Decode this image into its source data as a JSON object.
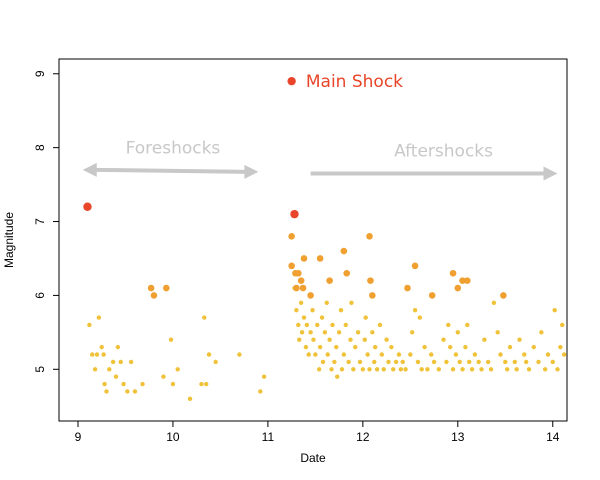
{
  "chart_data": {
    "type": "scatter",
    "xlabel": "Date",
    "ylabel": "Magnitude",
    "xlim": [
      8.8,
      14.15
    ],
    "ylim": [
      4.3,
      9.2
    ],
    "x_ticks": [
      9,
      10,
      11,
      12,
      13,
      14
    ],
    "y_ticks": [
      5,
      6,
      7,
      8,
      9
    ],
    "grid": false,
    "annotations": [
      {
        "text": "Main Shock",
        "x": 11.4,
        "y": 8.9,
        "color": "#e8452a"
      },
      {
        "text": "Foreshocks",
        "x": 10.0,
        "y": 7.92,
        "color": "#c8c8c8",
        "arrow_x": [
          9.05,
          10.9
        ],
        "arrow_y": 7.7
      },
      {
        "text": "Aftershocks",
        "x": 12.85,
        "y": 7.88,
        "color": "#c8c8c8",
        "arrow_x": [
          11.45,
          14.05
        ],
        "arrow_y": 7.65
      }
    ],
    "colors": {
      "red": "#e8452a",
      "orange": "#f0a030",
      "yellow": "#efc23a",
      "arrow": "#c8c8c8"
    },
    "series": [
      {
        "color": "red",
        "points": [
          [
            11.25,
            8.9
          ],
          [
            9.1,
            7.2
          ],
          [
            11.28,
            7.1
          ]
        ]
      },
      {
        "color": "orange",
        "points": [
          [
            9.77,
            6.1
          ],
          [
            9.8,
            6.0
          ],
          [
            9.93,
            6.1
          ],
          [
            11.25,
            6.8
          ],
          [
            11.25,
            6.4
          ],
          [
            11.29,
            6.3
          ],
          [
            11.32,
            6.3
          ],
          [
            11.3,
            6.1
          ],
          [
            11.35,
            6.2
          ],
          [
            11.37,
            6.1
          ],
          [
            11.38,
            6.5
          ],
          [
            11.45,
            6.0
          ],
          [
            11.55,
            6.5
          ],
          [
            11.65,
            6.2
          ],
          [
            11.8,
            6.6
          ],
          [
            11.83,
            6.3
          ],
          [
            12.07,
            6.8
          ],
          [
            12.08,
            6.2
          ],
          [
            12.1,
            6.0
          ],
          [
            12.47,
            6.1
          ],
          [
            12.55,
            6.4
          ],
          [
            12.73,
            6.0
          ],
          [
            12.95,
            6.3
          ],
          [
            13.0,
            6.1
          ],
          [
            13.05,
            6.2
          ],
          [
            13.1,
            6.2
          ],
          [
            13.48,
            6.0
          ]
        ]
      },
      {
        "color": "yellow",
        "points": [
          [
            9.12,
            5.6
          ],
          [
            9.15,
            5.2
          ],
          [
            9.18,
            5.0
          ],
          [
            9.2,
            5.2
          ],
          [
            9.22,
            5.7
          ],
          [
            9.25,
            5.3
          ],
          [
            9.27,
            5.2
          ],
          [
            9.28,
            4.8
          ],
          [
            9.3,
            4.7
          ],
          [
            9.33,
            5.0
          ],
          [
            9.37,
            5.1
          ],
          [
            9.4,
            4.9
          ],
          [
            9.42,
            5.3
          ],
          [
            9.45,
            5.1
          ],
          [
            9.48,
            4.8
          ],
          [
            9.52,
            4.7
          ],
          [
            9.56,
            5.1
          ],
          [
            9.6,
            4.7
          ],
          [
            9.68,
            4.8
          ],
          [
            9.9,
            4.9
          ],
          [
            9.98,
            5.4
          ],
          [
            10.0,
            4.8
          ],
          [
            10.05,
            5.0
          ],
          [
            10.18,
            4.6
          ],
          [
            10.3,
            4.8
          ],
          [
            10.33,
            5.7
          ],
          [
            10.35,
            4.8
          ],
          [
            10.38,
            5.2
          ],
          [
            10.45,
            5.1
          ],
          [
            10.7,
            5.2
          ],
          [
            10.92,
            4.7
          ],
          [
            10.96,
            4.9
          ],
          [
            11.28,
            6.1
          ],
          [
            11.3,
            5.8
          ],
          [
            11.32,
            5.6
          ],
          [
            11.33,
            5.4
          ],
          [
            11.35,
            5.9
          ],
          [
            11.36,
            5.5
          ],
          [
            11.38,
            5.7
          ],
          [
            11.4,
            5.3
          ],
          [
            11.41,
            5.6
          ],
          [
            11.43,
            5.2
          ],
          [
            11.45,
            5.5
          ],
          [
            11.47,
            5.8
          ],
          [
            11.48,
            5.4
          ],
          [
            11.5,
            5.2
          ],
          [
            11.52,
            5.6
          ],
          [
            11.54,
            5.0
          ],
          [
            11.55,
            5.3
          ],
          [
            11.57,
            5.7
          ],
          [
            11.58,
            5.1
          ],
          [
            11.6,
            5.5
          ],
          [
            11.62,
            5.9
          ],
          [
            11.63,
            5.2
          ],
          [
            11.65,
            5.4
          ],
          [
            11.67,
            5.0
          ],
          [
            11.68,
            5.6
          ],
          [
            11.7,
            5.1
          ],
          [
            11.72,
            5.3
          ],
          [
            11.73,
            4.9
          ],
          [
            11.75,
            5.5
          ],
          [
            11.77,
            5.8
          ],
          [
            11.78,
            5.0
          ],
          [
            11.8,
            5.2
          ],
          [
            11.82,
            5.6
          ],
          [
            11.85,
            5.1
          ],
          [
            11.87,
            5.4
          ],
          [
            11.88,
            5.9
          ],
          [
            11.9,
            5.0
          ],
          [
            11.92,
            5.3
          ],
          [
            11.95,
            5.5
          ],
          [
            11.97,
            5.1
          ],
          [
            12.0,
            5.0
          ],
          [
            12.02,
            5.4
          ],
          [
            12.03,
            5.7
          ],
          [
            12.05,
            5.2
          ],
          [
            12.07,
            5.0
          ],
          [
            12.1,
            5.5
          ],
          [
            12.12,
            5.1
          ],
          [
            12.13,
            5.3
          ],
          [
            12.15,
            5.0
          ],
          [
            12.18,
            5.6
          ],
          [
            12.2,
            5.2
          ],
          [
            12.22,
            5.0
          ],
          [
            12.25,
            5.4
          ],
          [
            12.27,
            5.1
          ],
          [
            12.3,
            5.3
          ],
          [
            12.32,
            5.0
          ],
          [
            12.35,
            5.1
          ],
          [
            12.38,
            5.2
          ],
          [
            12.4,
            5.0
          ],
          [
            12.42,
            5.1
          ],
          [
            12.45,
            5.0
          ],
          [
            12.5,
            5.2
          ],
          [
            12.52,
            5.5
          ],
          [
            12.55,
            5.8
          ],
          [
            12.58,
            5.1
          ],
          [
            12.6,
            5.7
          ],
          [
            12.62,
            5.0
          ],
          [
            12.65,
            5.3
          ],
          [
            12.68,
            5.0
          ],
          [
            12.72,
            5.2
          ],
          [
            12.75,
            5.1
          ],
          [
            12.8,
            5.0
          ],
          [
            12.85,
            5.4
          ],
          [
            12.88,
            5.1
          ],
          [
            12.9,
            5.6
          ],
          [
            12.92,
            5.3
          ],
          [
            12.95,
            5.0
          ],
          [
            12.98,
            5.2
          ],
          [
            13.0,
            5.5
          ],
          [
            13.02,
            5.1
          ],
          [
            13.05,
            5.0
          ],
          [
            13.08,
            5.3
          ],
          [
            13.1,
            5.6
          ],
          [
            13.12,
            5.1
          ],
          [
            13.15,
            5.0
          ],
          [
            13.18,
            5.2
          ],
          [
            13.22,
            5.1
          ],
          [
            13.25,
            5.0
          ],
          [
            13.28,
            5.4
          ],
          [
            13.32,
            5.1
          ],
          [
            13.35,
            5.0
          ],
          [
            13.38,
            5.9
          ],
          [
            13.42,
            5.5
          ],
          [
            13.45,
            5.2
          ],
          [
            13.5,
            5.1
          ],
          [
            13.52,
            5.0
          ],
          [
            13.55,
            5.3
          ],
          [
            13.6,
            5.1
          ],
          [
            13.62,
            5.0
          ],
          [
            13.65,
            5.4
          ],
          [
            13.7,
            5.2
          ],
          [
            13.72,
            5.1
          ],
          [
            13.75,
            5.0
          ],
          [
            13.8,
            5.3
          ],
          [
            13.85,
            5.1
          ],
          [
            13.88,
            5.5
          ],
          [
            13.92,
            5.0
          ],
          [
            13.95,
            5.2
          ],
          [
            14.0,
            5.1
          ],
          [
            14.02,
            5.8
          ],
          [
            14.05,
            5.0
          ],
          [
            14.08,
            5.3
          ],
          [
            14.1,
            5.6
          ],
          [
            14.12,
            5.2
          ]
        ]
      }
    ]
  }
}
